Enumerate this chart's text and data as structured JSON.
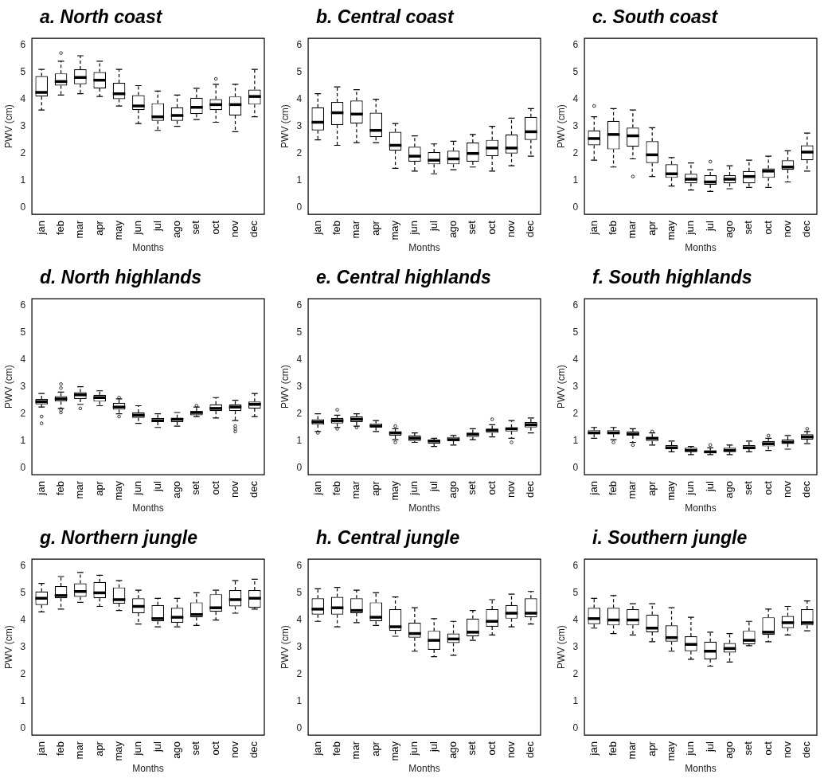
{
  "chart_data": [
    {
      "type": "box",
      "title": "a. North coast",
      "xlabel": "Months",
      "ylabel": "PWV (cm)",
      "categories": [
        "jan",
        "feb",
        "mar",
        "apr",
        "may",
        "jun",
        "jul",
        "ago",
        "set",
        "oct",
        "nov",
        "dec"
      ],
      "ylim": [
        -0.24,
        6.24
      ],
      "yticks": [
        0,
        1,
        2,
        3,
        4,
        5,
        6
      ],
      "boxes": [
        {
          "low": 3.6,
          "q1": 4.1,
          "median": 4.25,
          "q3": 4.85,
          "high": 5.1
        },
        {
          "low": 4.15,
          "q1": 4.5,
          "median": 4.65,
          "q3": 4.95,
          "high": 5.4,
          "outliers": [
            5.7
          ]
        },
        {
          "low": 4.2,
          "q1": 4.55,
          "median": 4.8,
          "q3": 5.1,
          "high": 5.6
        },
        {
          "low": 4.1,
          "q1": 4.4,
          "median": 4.7,
          "q3": 5.0,
          "high": 5.4
        },
        {
          "low": 3.75,
          "q1": 4.0,
          "median": 4.2,
          "q3": 4.6,
          "high": 5.1
        },
        {
          "low": 3.1,
          "q1": 3.6,
          "median": 3.75,
          "q3": 4.15,
          "high": 4.5
        },
        {
          "low": 2.85,
          "q1": 3.2,
          "median": 3.35,
          "q3": 3.85,
          "high": 4.3
        },
        {
          "low": 3.0,
          "q1": 3.2,
          "median": 3.4,
          "q3": 3.7,
          "high": 4.15
        },
        {
          "low": 3.25,
          "q1": 3.45,
          "median": 3.7,
          "q3": 4.05,
          "high": 4.4
        },
        {
          "low": 3.15,
          "q1": 3.6,
          "median": 3.8,
          "q3": 4.0,
          "high": 4.55,
          "outliers": [
            4.75
          ]
        },
        {
          "low": 2.8,
          "q1": 3.4,
          "median": 3.8,
          "q3": 4.1,
          "high": 4.55
        },
        {
          "low": 3.35,
          "q1": 3.8,
          "median": 4.1,
          "q3": 4.35,
          "high": 5.1
        }
      ]
    },
    {
      "type": "box",
      "title": "b. Central coast",
      "xlabel": "Months",
      "ylabel": "PWV (cm)",
      "categories": [
        "jan",
        "feb",
        "mar",
        "apr",
        "may",
        "jun",
        "jul",
        "ago",
        "set",
        "oct",
        "nov",
        "dec"
      ],
      "ylim": [
        -0.24,
        6.24
      ],
      "yticks": [
        0,
        1,
        2,
        3,
        4,
        5,
        6
      ],
      "boxes": [
        {
          "low": 2.5,
          "q1": 2.85,
          "median": 3.15,
          "q3": 3.7,
          "high": 4.2
        },
        {
          "low": 2.3,
          "q1": 3.05,
          "median": 3.5,
          "q3": 3.9,
          "high": 4.45
        },
        {
          "low": 2.4,
          "q1": 3.1,
          "median": 3.45,
          "q3": 3.95,
          "high": 4.35
        },
        {
          "low": 2.4,
          "q1": 2.6,
          "median": 2.85,
          "q3": 3.5,
          "high": 4.0
        },
        {
          "low": 1.45,
          "q1": 2.1,
          "median": 2.3,
          "q3": 2.8,
          "high": 3.1
        },
        {
          "low": 1.35,
          "q1": 1.7,
          "median": 1.9,
          "q3": 2.25,
          "high": 2.65
        },
        {
          "low": 1.25,
          "q1": 1.6,
          "median": 1.75,
          "q3": 2.05,
          "high": 2.35
        },
        {
          "low": 1.4,
          "q1": 1.6,
          "median": 1.8,
          "q3": 2.1,
          "high": 2.45
        },
        {
          "low": 1.5,
          "q1": 1.7,
          "median": 2.0,
          "q3": 2.4,
          "high": 2.7
        },
        {
          "low": 1.35,
          "q1": 1.9,
          "median": 2.2,
          "q3": 2.5,
          "high": 3.0
        },
        {
          "low": 1.55,
          "q1": 2.0,
          "median": 2.2,
          "q3": 2.7,
          "high": 3.3
        },
        {
          "low": 1.9,
          "q1": 2.5,
          "median": 2.8,
          "q3": 3.35,
          "high": 3.65
        }
      ]
    },
    {
      "type": "box",
      "title": "c. South coast",
      "xlabel": "Months",
      "ylabel": "PWV (cm)",
      "categories": [
        "jan",
        "feb",
        "mar",
        "apr",
        "may",
        "jun",
        "jul",
        "ago",
        "set",
        "oct",
        "nov",
        "dec"
      ],
      "ylim": [
        -0.24,
        6.24
      ],
      "yticks": [
        0,
        1,
        2,
        3,
        4,
        5,
        6
      ],
      "boxes": [
        {
          "low": 1.75,
          "q1": 2.3,
          "median": 2.55,
          "q3": 2.85,
          "high": 3.35,
          "outliers": [
            3.75
          ]
        },
        {
          "low": 1.5,
          "q1": 2.15,
          "median": 2.7,
          "q3": 3.2,
          "high": 3.65
        },
        {
          "low": 1.8,
          "q1": 2.25,
          "median": 2.65,
          "q3": 2.95,
          "high": 3.6,
          "outliers": [
            1.15
          ]
        },
        {
          "low": 1.15,
          "q1": 1.65,
          "median": 1.95,
          "q3": 2.45,
          "high": 2.95
        },
        {
          "low": 0.8,
          "q1": 1.1,
          "median": 1.25,
          "q3": 1.6,
          "high": 1.85
        },
        {
          "low": 0.65,
          "q1": 0.9,
          "median": 1.05,
          "q3": 1.25,
          "high": 1.65
        },
        {
          "low": 0.6,
          "q1": 0.85,
          "median": 0.95,
          "q3": 1.2,
          "high": 1.4,
          "outliers": [
            1.7
          ]
        },
        {
          "low": 0.7,
          "q1": 0.9,
          "median": 1.05,
          "q3": 1.2,
          "high": 1.55
        },
        {
          "low": 0.75,
          "q1": 0.9,
          "median": 1.15,
          "q3": 1.35,
          "high": 1.75
        },
        {
          "low": 0.75,
          "q1": 1.1,
          "median": 1.35,
          "q3": 1.45,
          "high": 1.9
        },
        {
          "low": 0.95,
          "q1": 1.4,
          "median": 1.5,
          "q3": 1.75,
          "high": 2.1
        },
        {
          "low": 1.35,
          "q1": 1.75,
          "median": 2.05,
          "q3": 2.3,
          "high": 2.75
        }
      ]
    },
    {
      "type": "box",
      "title": "d. North highlands",
      "xlabel": "Months",
      "ylabel": "PWV (cm)",
      "categories": [
        "jan",
        "feb",
        "mar",
        "apr",
        "may",
        "jun",
        "jul",
        "ago",
        "set",
        "oct",
        "nov",
        "dec"
      ],
      "ylim": [
        -0.24,
        6.24
      ],
      "yticks": [
        0,
        1,
        2,
        3,
        4,
        5,
        6
      ],
      "boxes": [
        {
          "low": 2.25,
          "q1": 2.35,
          "median": 2.45,
          "q3": 2.55,
          "high": 2.75,
          "outliers": [
            1.65,
            1.9
          ]
        },
        {
          "low": 2.2,
          "q1": 2.45,
          "median": 2.55,
          "q3": 2.65,
          "high": 2.8,
          "outliers": [
            2.05,
            2.15,
            2.95,
            3.1
          ]
        },
        {
          "low": 2.35,
          "q1": 2.55,
          "median": 2.7,
          "q3": 2.8,
          "high": 3.0,
          "outliers": [
            2.2
          ]
        },
        {
          "low": 2.3,
          "q1": 2.45,
          "median": 2.6,
          "q3": 2.7,
          "high": 2.85
        },
        {
          "low": 2.0,
          "q1": 2.15,
          "median": 2.25,
          "q3": 2.4,
          "high": 2.55,
          "outliers": [
            1.9,
            2.6
          ]
        },
        {
          "low": 1.65,
          "q1": 1.85,
          "median": 1.95,
          "q3": 2.05,
          "high": 2.3
        },
        {
          "low": 1.5,
          "q1": 1.7,
          "median": 1.75,
          "q3": 1.85,
          "high": 2.0
        },
        {
          "low": 1.55,
          "q1": 1.7,
          "median": 1.8,
          "q3": 1.85,
          "high": 2.05
        },
        {
          "low": 1.9,
          "q1": 1.95,
          "median": 2.05,
          "q3": 2.1,
          "high": 2.25,
          "outliers": [
            2.3
          ]
        },
        {
          "low": 1.85,
          "q1": 2.1,
          "median": 2.2,
          "q3": 2.35,
          "high": 2.6
        },
        {
          "low": 1.75,
          "q1": 2.1,
          "median": 2.25,
          "q3": 2.35,
          "high": 2.5,
          "outliers": [
            1.35,
            1.45,
            1.55
          ]
        },
        {
          "low": 1.9,
          "q1": 2.2,
          "median": 2.35,
          "q3": 2.45,
          "high": 2.75
        }
      ]
    },
    {
      "type": "box",
      "title": "e. Central highlands",
      "xlabel": "Months",
      "ylabel": "PWV (cm)",
      "categories": [
        "jan",
        "feb",
        "mar",
        "apr",
        "may",
        "jun",
        "jul",
        "ago",
        "set",
        "oct",
        "nov",
        "dec"
      ],
      "ylim": [
        -0.24,
        6.24
      ],
      "yticks": [
        0,
        1,
        2,
        3,
        4,
        5,
        6
      ],
      "boxes": [
        {
          "low": 1.35,
          "q1": 1.6,
          "median": 1.7,
          "q3": 1.8,
          "high": 2.0,
          "outliers": [
            1.3
          ]
        },
        {
          "low": 1.5,
          "q1": 1.65,
          "median": 1.75,
          "q3": 1.85,
          "high": 1.95,
          "outliers": [
            1.45,
            2.15
          ]
        },
        {
          "low": 1.55,
          "q1": 1.7,
          "median": 1.8,
          "q3": 1.9,
          "high": 2.0,
          "outliers": [
            1.5
          ]
        },
        {
          "low": 1.35,
          "q1": 1.5,
          "median": 1.55,
          "q3": 1.65,
          "high": 1.75
        },
        {
          "low": 1.05,
          "q1": 1.2,
          "median": 1.3,
          "q3": 1.35,
          "high": 1.45,
          "outliers": [
            0.95,
            1.55
          ]
        },
        {
          "low": 0.95,
          "q1": 1.0,
          "median": 1.1,
          "q3": 1.2,
          "high": 1.3
        },
        {
          "low": 0.8,
          "q1": 0.9,
          "median": 1.0,
          "q3": 1.05,
          "high": 1.1
        },
        {
          "low": 0.85,
          "q1": 1.0,
          "median": 1.05,
          "q3": 1.15,
          "high": 1.2
        },
        {
          "low": 1.05,
          "q1": 1.15,
          "median": 1.25,
          "q3": 1.3,
          "high": 1.45
        },
        {
          "low": 1.15,
          "q1": 1.3,
          "median": 1.4,
          "q3": 1.45,
          "high": 1.6,
          "outliers": [
            1.8
          ]
        },
        {
          "low": 1.1,
          "q1": 1.35,
          "median": 1.45,
          "q3": 1.5,
          "high": 1.75,
          "outliers": [
            0.95
          ]
        },
        {
          "low": 1.3,
          "q1": 1.5,
          "median": 1.6,
          "q3": 1.7,
          "high": 1.85
        }
      ]
    },
    {
      "type": "box",
      "title": "f. South highlands",
      "xlabel": "Months",
      "ylabel": "PWV (cm)",
      "categories": [
        "jan",
        "feb",
        "mar",
        "apr",
        "may",
        "jun",
        "jul",
        "ago",
        "set",
        "oct",
        "nov",
        "dec"
      ],
      "ylim": [
        -0.24,
        6.24
      ],
      "yticks": [
        0,
        1,
        2,
        3,
        4,
        5,
        6
      ],
      "boxes": [
        {
          "low": 1.1,
          "q1": 1.25,
          "median": 1.3,
          "q3": 1.4,
          "high": 1.5
        },
        {
          "low": 1.05,
          "q1": 1.25,
          "median": 1.3,
          "q3": 1.4,
          "high": 1.5,
          "outliers": [
            0.95
          ]
        },
        {
          "low": 0.95,
          "q1": 1.2,
          "median": 1.25,
          "q3": 1.35,
          "high": 1.45,
          "outliers": [
            0.85
          ]
        },
        {
          "low": 0.85,
          "q1": 1.0,
          "median": 1.1,
          "q3": 1.15,
          "high": 1.3,
          "outliers": [
            1.35
          ]
        },
        {
          "low": 0.6,
          "q1": 0.7,
          "median": 0.75,
          "q3": 0.85,
          "high": 1.0
        },
        {
          "low": 0.5,
          "q1": 0.6,
          "median": 0.65,
          "q3": 0.75,
          "high": 0.8
        },
        {
          "low": 0.5,
          "q1": 0.55,
          "median": 0.6,
          "q3": 0.65,
          "high": 0.75,
          "outliers": [
            0.85
          ]
        },
        {
          "low": 0.5,
          "q1": 0.6,
          "median": 0.65,
          "q3": 0.75,
          "high": 0.85
        },
        {
          "low": 0.6,
          "q1": 0.7,
          "median": 0.75,
          "q3": 0.85,
          "high": 1.0
        },
        {
          "low": 0.65,
          "q1": 0.8,
          "median": 0.9,
          "q3": 1.0,
          "high": 1.1,
          "outliers": [
            1.2
          ]
        },
        {
          "low": 0.7,
          "q1": 0.9,
          "median": 0.95,
          "q3": 1.05,
          "high": 1.2
        },
        {
          "low": 0.9,
          "q1": 1.05,
          "median": 1.15,
          "q3": 1.25,
          "high": 1.35,
          "outliers": [
            1.45
          ]
        }
      ]
    },
    {
      "type": "box",
      "title": "g. Northern jungle",
      "xlabel": "Months",
      "ylabel": "PWV (cm)",
      "categories": [
        "jan",
        "feb",
        "mar",
        "apr",
        "may",
        "jun",
        "jul",
        "ago",
        "set",
        "oct",
        "nov",
        "dec"
      ],
      "ylim": [
        -0.24,
        6.24
      ],
      "yticks": [
        0,
        1,
        2,
        3,
        4,
        5,
        6
      ],
      "boxes": [
        {
          "low": 4.3,
          "q1": 4.55,
          "median": 4.8,
          "q3": 5.05,
          "high": 5.35
        },
        {
          "low": 4.4,
          "q1": 4.8,
          "median": 4.9,
          "q3": 5.25,
          "high": 5.6
        },
        {
          "low": 4.65,
          "q1": 4.85,
          "median": 5.05,
          "q3": 5.35,
          "high": 5.75
        },
        {
          "low": 4.5,
          "q1": 4.8,
          "median": 5.0,
          "q3": 5.4,
          "high": 5.65
        },
        {
          "low": 4.35,
          "q1": 4.6,
          "median": 4.75,
          "q3": 5.2,
          "high": 5.45
        },
        {
          "low": 3.85,
          "q1": 4.25,
          "median": 4.5,
          "q3": 4.8,
          "high": 5.1
        },
        {
          "low": 3.75,
          "q1": 3.95,
          "median": 4.05,
          "q3": 4.55,
          "high": 4.8
        },
        {
          "low": 3.75,
          "q1": 3.9,
          "median": 4.1,
          "q3": 4.45,
          "high": 4.8
        },
        {
          "low": 3.8,
          "q1": 4.1,
          "median": 4.2,
          "q3": 4.65,
          "high": 5.0
        },
        {
          "low": 4.0,
          "q1": 4.3,
          "median": 4.45,
          "q3": 4.95,
          "high": 5.1
        },
        {
          "low": 4.25,
          "q1": 4.5,
          "median": 4.75,
          "q3": 5.1,
          "high": 5.45
        },
        {
          "low": 4.4,
          "q1": 4.45,
          "median": 4.8,
          "q3": 5.1,
          "high": 5.5
        }
      ]
    },
    {
      "type": "box",
      "title": "h. Central jungle",
      "xlabel": "Months",
      "ylabel": "PWV (cm)",
      "categories": [
        "jan",
        "feb",
        "mar",
        "apr",
        "may",
        "jun",
        "jul",
        "ago",
        "set",
        "oct",
        "nov",
        "dec"
      ],
      "ylim": [
        -0.24,
        6.24
      ],
      "yticks": [
        0,
        1,
        2,
        3,
        4,
        5,
        6
      ],
      "boxes": [
        {
          "low": 3.95,
          "q1": 4.2,
          "median": 4.4,
          "q3": 4.8,
          "high": 5.15
        },
        {
          "low": 3.75,
          "q1": 4.2,
          "median": 4.45,
          "q3": 4.85,
          "high": 5.2
        },
        {
          "low": 3.9,
          "q1": 4.25,
          "median": 4.35,
          "q3": 4.8,
          "high": 5.1
        },
        {
          "low": 3.8,
          "q1": 3.95,
          "median": 4.1,
          "q3": 4.65,
          "high": 5.0
        },
        {
          "low": 3.4,
          "q1": 3.6,
          "median": 3.75,
          "q3": 4.4,
          "high": 4.85
        },
        {
          "low": 2.85,
          "q1": 3.35,
          "median": 3.5,
          "q3": 3.9,
          "high": 4.45
        },
        {
          "low": 2.65,
          "q1": 2.9,
          "median": 3.25,
          "q3": 3.6,
          "high": 4.05
        },
        {
          "low": 2.7,
          "q1": 3.15,
          "median": 3.3,
          "q3": 3.5,
          "high": 3.95
        },
        {
          "low": 3.25,
          "q1": 3.4,
          "median": 3.55,
          "q3": 4.05,
          "high": 4.35
        },
        {
          "low": 3.45,
          "q1": 3.75,
          "median": 3.95,
          "q3": 4.4,
          "high": 4.75
        },
        {
          "low": 3.75,
          "q1": 4.05,
          "median": 4.25,
          "q3": 4.55,
          "high": 4.95
        },
        {
          "low": 3.85,
          "q1": 4.1,
          "median": 4.25,
          "q3": 4.8,
          "high": 5.05
        }
      ]
    },
    {
      "type": "box",
      "title": "i. Southern jungle",
      "xlabel": "Months",
      "ylabel": "PWV (cm)",
      "categories": [
        "jan",
        "feb",
        "mar",
        "apr",
        "may",
        "jun",
        "jul",
        "ago",
        "set",
        "oct",
        "nov",
        "dec"
      ],
      "ylim": [
        -0.24,
        6.24
      ],
      "yticks": [
        0,
        1,
        2,
        3,
        4,
        5,
        6
      ],
      "boxes": [
        {
          "low": 3.7,
          "q1": 3.85,
          "median": 4.05,
          "q3": 4.45,
          "high": 4.8
        },
        {
          "low": 3.5,
          "q1": 3.8,
          "median": 4.0,
          "q3": 4.45,
          "high": 4.9
        },
        {
          "low": 3.45,
          "q1": 3.8,
          "median": 4.0,
          "q3": 4.4,
          "high": 4.6
        },
        {
          "low": 3.2,
          "q1": 3.55,
          "median": 3.7,
          "q3": 4.2,
          "high": 4.6
        },
        {
          "low": 2.85,
          "q1": 3.2,
          "median": 3.35,
          "q3": 3.8,
          "high": 4.45
        },
        {
          "low": 2.55,
          "q1": 2.85,
          "median": 3.1,
          "q3": 3.4,
          "high": 4.1
        },
        {
          "low": 2.3,
          "q1": 2.55,
          "median": 2.85,
          "q3": 3.2,
          "high": 3.55
        },
        {
          "low": 2.45,
          "q1": 2.8,
          "median": 2.95,
          "q3": 3.15,
          "high": 3.5
        },
        {
          "low": 3.05,
          "q1": 3.1,
          "median": 3.25,
          "q3": 3.6,
          "high": 3.95
        },
        {
          "low": 3.2,
          "q1": 3.45,
          "median": 3.55,
          "q3": 4.1,
          "high": 4.4
        },
        {
          "low": 3.45,
          "q1": 3.7,
          "median": 3.9,
          "q3": 4.15,
          "high": 4.5
        },
        {
          "low": 3.6,
          "q1": 3.8,
          "median": 3.9,
          "q3": 4.4,
          "high": 4.7
        }
      ]
    }
  ]
}
